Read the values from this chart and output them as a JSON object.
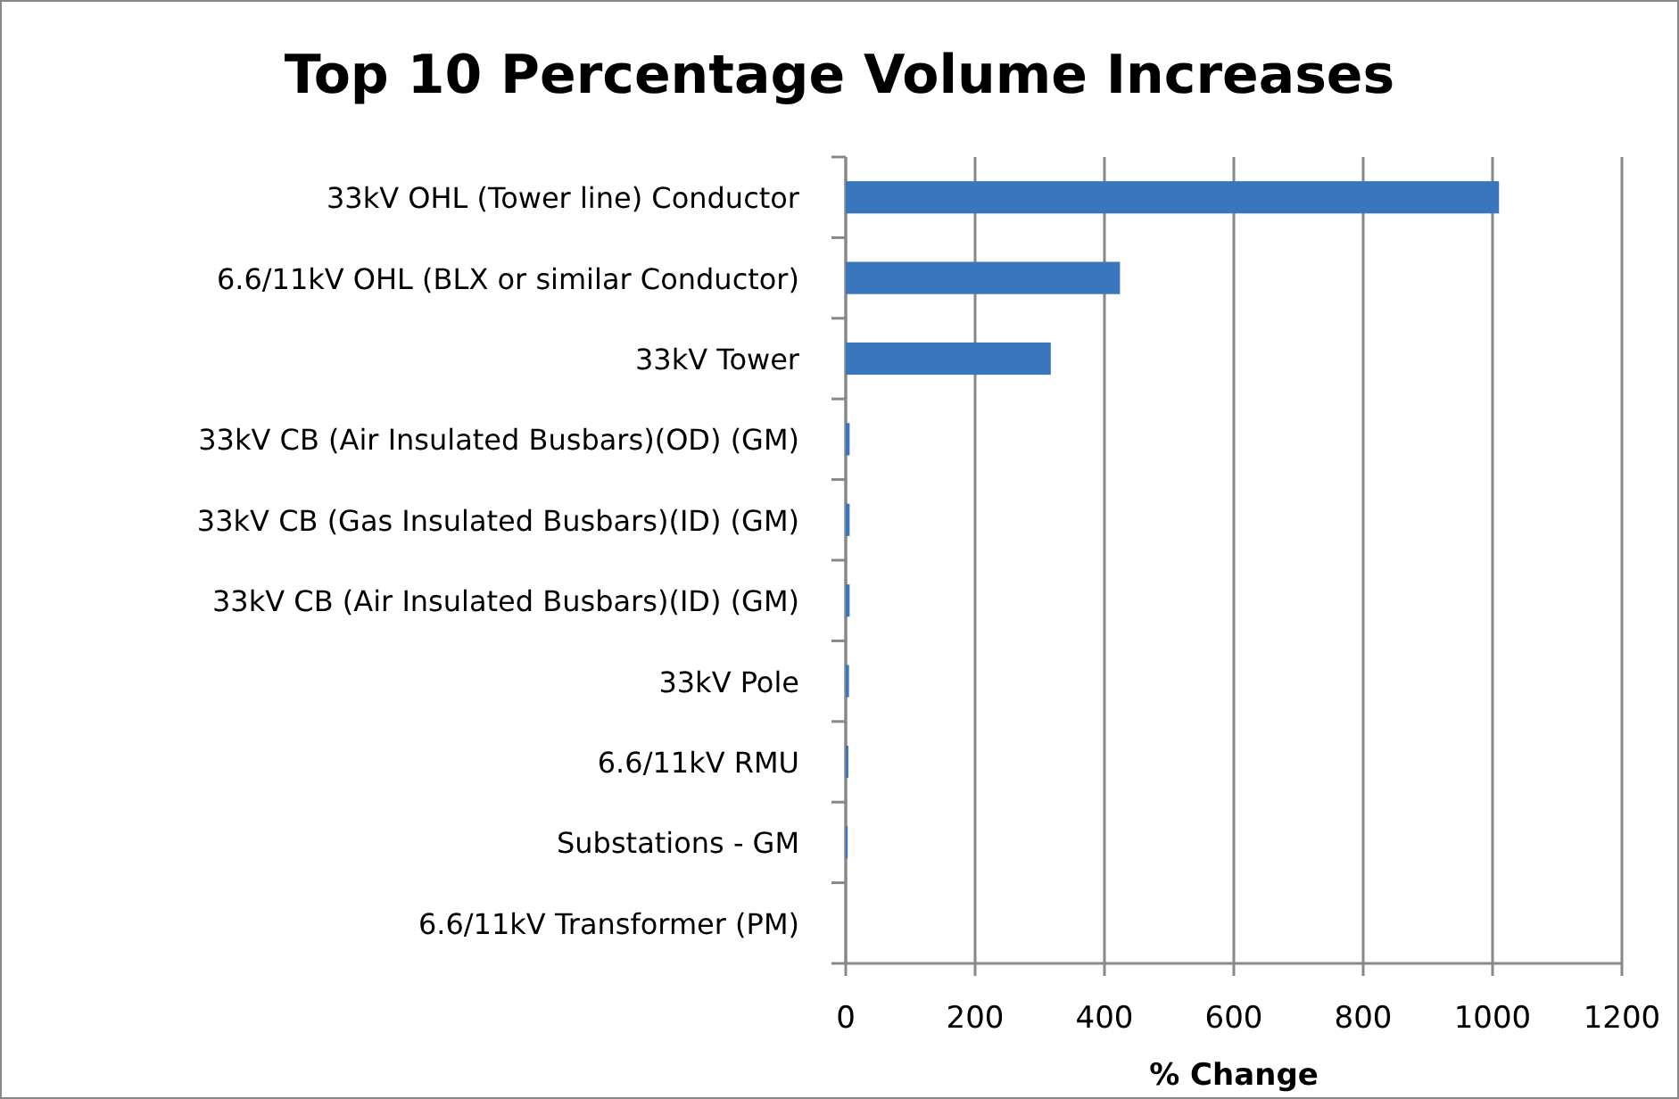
{
  "chart_data": {
    "type": "bar",
    "orientation": "horizontal",
    "title": "Top 10 Percentage Volume Increases",
    "xlabel": "% Change",
    "categories": [
      "33kV OHL (Tower line) Conductor",
      "6.6/11kV OHL (BLX or similar Conductor)",
      "33kV Tower",
      "33kV CB (Air Insulated Busbars)(OD) (GM)",
      "33kV CB (Gas Insulated Busbars)(ID) (GM)",
      "33kV CB (Air Insulated Busbars)(ID) (GM)",
      "33kV Pole",
      "6.6/11kV RMU",
      "Substations - GM",
      "6.6/11kV Transformer (PM)"
    ],
    "values": [
      1010,
      424,
      317,
      6,
      6,
      6,
      5,
      4,
      3,
      0
    ],
    "color": "#3a76be",
    "xlim": [
      0,
      1200
    ],
    "xticks": [
      0,
      200,
      400,
      600,
      800,
      1000,
      1200
    ],
    "grid": "x"
  }
}
